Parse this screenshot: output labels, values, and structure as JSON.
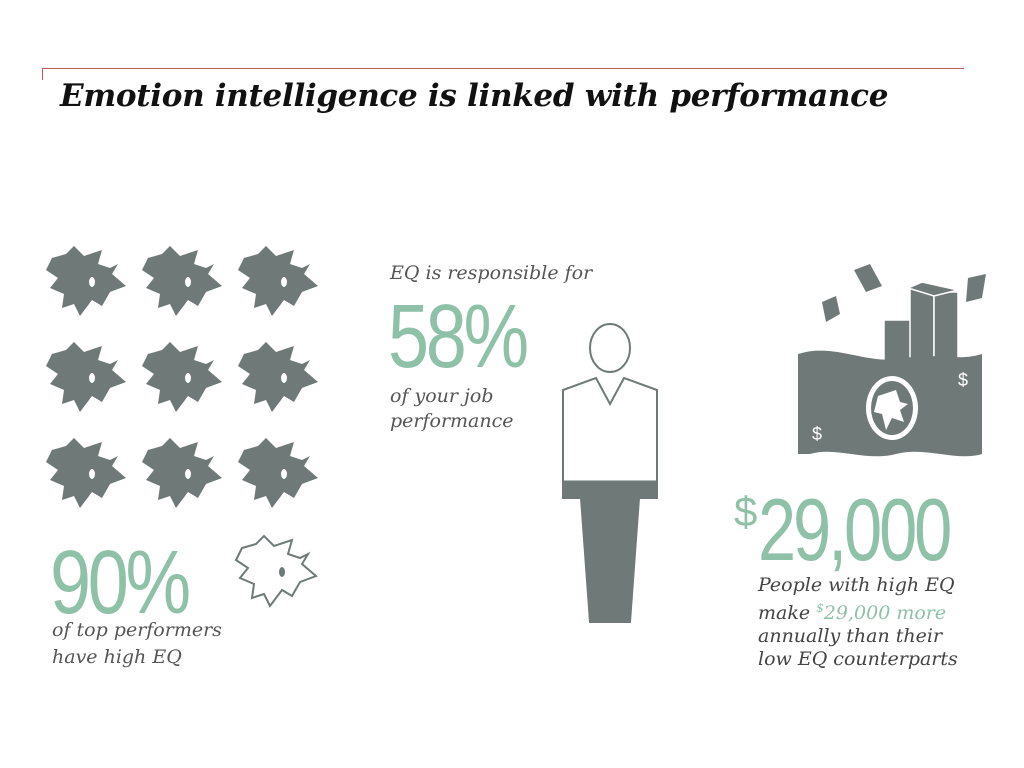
{
  "title": "Emotion intelligence is linked with performance",
  "colors": {
    "accent": "#8fc1a9",
    "icon_gray": "#6f7a78",
    "rule": "#b85a5a"
  },
  "stat_left": {
    "value": "90%",
    "caption_line1": "of top performers",
    "caption_line2": "have high EQ",
    "icons": {
      "filled": 9,
      "outlined": 1,
      "icon": "face-icon"
    }
  },
  "stat_middle": {
    "lead": "EQ is responsible for",
    "value": "58%",
    "caption_line1": "of your job",
    "caption_line2": "performance",
    "fill_fraction": 0.58,
    "icon": "person-icon"
  },
  "stat_right": {
    "currency": "$",
    "value": "29,000",
    "caption_line1": "People with high EQ",
    "caption_line2_lead": "make",
    "caption_line2_sup": "$",
    "caption_line2_accent": "29,000 more",
    "caption_line3": "annually than their",
    "caption_line4": "low EQ counterparts",
    "icon": "money-icon",
    "bill_symbol": "$"
  }
}
